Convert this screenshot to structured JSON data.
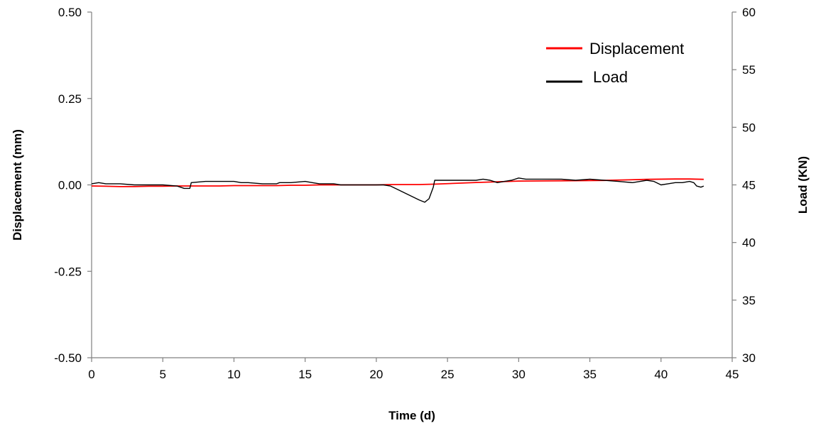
{
  "chart_data": {
    "type": "line",
    "title": "",
    "xlabel": "Time (d)",
    "ylabel": "Displacement (mm)",
    "y2label": "Load (KN)",
    "xlim": [
      0,
      45
    ],
    "ylim": [
      -0.5,
      0.5
    ],
    "y2lim": [
      30,
      60
    ],
    "x_ticks": [
      0,
      5,
      10,
      15,
      20,
      25,
      30,
      35,
      40,
      45
    ],
    "x_tick_labels": [
      "0",
      "5",
      "10",
      "15",
      "20",
      "25",
      "30",
      "35",
      "40",
      "45"
    ],
    "y_ticks": [
      -0.5,
      -0.25,
      0,
      0.25,
      0.5
    ],
    "y_tick_labels": [
      "-0.50",
      "-0.25",
      "0.00",
      "0.25",
      "0.50"
    ],
    "y2_ticks": [
      30,
      35,
      40,
      45,
      50,
      55,
      60
    ],
    "y2_tick_labels": [
      "30",
      "35",
      "40",
      "45",
      "50",
      "55",
      "60"
    ],
    "grid": false,
    "legend_position": "top-right",
    "series": [
      {
        "name": "Displacement",
        "axis": "left",
        "color": "#ff0000",
        "x": [
          0,
          1,
          2,
          3,
          4,
          5,
          6,
          7,
          8,
          9,
          10,
          11,
          12,
          13,
          14,
          15,
          16,
          17,
          18,
          19,
          20,
          21,
          22,
          23,
          24,
          27,
          30,
          33,
          36,
          39,
          41,
          42,
          43
        ],
        "y": [
          -0.003,
          -0.004,
          -0.005,
          -0.005,
          -0.004,
          -0.004,
          -0.003,
          -0.003,
          -0.003,
          -0.003,
          -0.002,
          -0.002,
          -0.002,
          -0.002,
          -0.001,
          -0.001,
          0.0,
          0.0,
          0.0,
          0.0,
          0.0,
          0.001,
          0.001,
          0.001,
          0.002,
          0.007,
          0.011,
          0.012,
          0.013,
          0.016,
          0.017,
          0.017,
          0.016
        ]
      },
      {
        "name": "Load",
        "axis": "right",
        "color": "#000000",
        "x": [
          0,
          0.5,
          1,
          2,
          3,
          4,
          5,
          6,
          6.5,
          6.9,
          7.0,
          8,
          9,
          10,
          10.5,
          11,
          12,
          13,
          13.2,
          14,
          15,
          15.5,
          16,
          17,
          17.5,
          18,
          19,
          20,
          20.5,
          21,
          21.5,
          22,
          22.5,
          23,
          23.4,
          23.7,
          24.0,
          24.1,
          25,
          26,
          27,
          27.5,
          28,
          28.5,
          29,
          29.5,
          30,
          30.5,
          31,
          32,
          33,
          34,
          35,
          36,
          37,
          38,
          39,
          39.5,
          40,
          40.5,
          41,
          41.5,
          42,
          42.3,
          42.5,
          42.8,
          43
        ],
        "y": [
          45.1,
          45.2,
          45.1,
          45.1,
          45.0,
          45.0,
          45.0,
          44.9,
          44.7,
          44.7,
          45.2,
          45.3,
          45.3,
          45.3,
          45.2,
          45.2,
          45.1,
          45.1,
          45.2,
          45.2,
          45.3,
          45.2,
          45.1,
          45.1,
          45.0,
          45.0,
          45.0,
          45.0,
          45.0,
          44.9,
          44.6,
          44.3,
          44.0,
          43.7,
          43.5,
          43.8,
          44.8,
          45.4,
          45.4,
          45.4,
          45.4,
          45.5,
          45.4,
          45.2,
          45.3,
          45.4,
          45.6,
          45.5,
          45.5,
          45.5,
          45.5,
          45.4,
          45.5,
          45.4,
          45.3,
          45.2,
          45.4,
          45.3,
          45.0,
          45.1,
          45.2,
          45.2,
          45.3,
          45.2,
          44.9,
          44.8,
          44.9
        ]
      }
    ]
  }
}
